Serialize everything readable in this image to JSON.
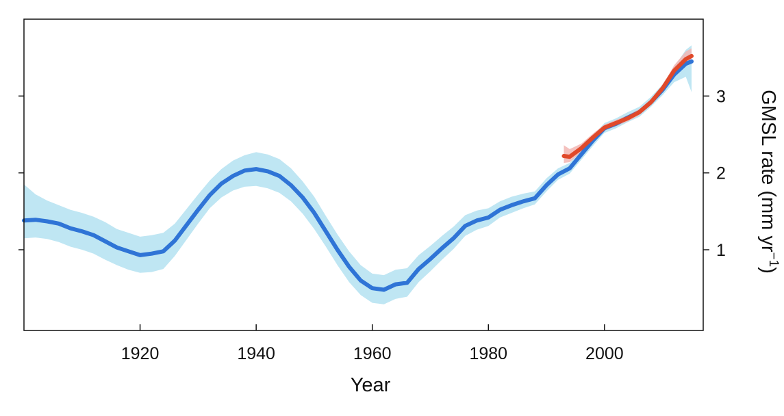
{
  "chart_data": {
    "type": "line",
    "xlabel": "Year",
    "ylabel_main": "GMSL rate (mm yr",
    "ylabel_sup": "−1",
    "ylabel_close": ")",
    "xlim": [
      1900,
      2017
    ],
    "ylim": [
      -0.05,
      4.0
    ],
    "x_ticks": [
      1920,
      1940,
      1960,
      1980,
      2000
    ],
    "x_tick_labels": [
      "1920",
      "1940",
      "1960",
      "1980",
      "2000"
    ],
    "y_ticks": [
      1,
      2,
      3
    ],
    "y_tick_labels": [
      "1",
      "2",
      "3"
    ],
    "y_axis_side": "right",
    "grid": false,
    "legend": "none",
    "series": [
      {
        "color": "#2f74d6",
        "band_color": "#bfe6f3",
        "x": [
          1900,
          1902,
          1904,
          1906,
          1908,
          1910,
          1912,
          1914,
          1916,
          1918,
          1920,
          1922,
          1924,
          1926,
          1928,
          1930,
          1932,
          1934,
          1936,
          1938,
          1940,
          1942,
          1944,
          1946,
          1948,
          1950,
          1952,
          1954,
          1956,
          1958,
          1960,
          1962,
          1964,
          1966,
          1968,
          1970,
          1972,
          1974,
          1976,
          1978,
          1980,
          1982,
          1984,
          1986,
          1988,
          1990,
          1992,
          1994,
          1996,
          1998,
          2000,
          2002,
          2004,
          2006,
          2008,
          2010,
          2012,
          2014,
          2015
        ],
        "y": [
          1.38,
          1.39,
          1.37,
          1.34,
          1.28,
          1.24,
          1.19,
          1.11,
          1.03,
          0.98,
          0.93,
          0.95,
          0.98,
          1.12,
          1.32,
          1.52,
          1.71,
          1.86,
          1.96,
          2.03,
          2.05,
          2.02,
          1.96,
          1.84,
          1.68,
          1.48,
          1.24,
          1.0,
          0.78,
          0.6,
          0.5,
          0.48,
          0.55,
          0.57,
          0.75,
          0.88,
          1.02,
          1.15,
          1.31,
          1.38,
          1.42,
          1.52,
          1.58,
          1.63,
          1.67,
          1.84,
          1.98,
          2.06,
          2.24,
          2.42,
          2.58,
          2.64,
          2.72,
          2.79,
          2.92,
          3.08,
          3.28,
          3.42,
          3.45
        ],
        "lower": [
          1.15,
          1.16,
          1.14,
          1.1,
          1.04,
          1.0,
          0.95,
          0.87,
          0.8,
          0.74,
          0.7,
          0.71,
          0.75,
          0.92,
          1.13,
          1.34,
          1.54,
          1.68,
          1.77,
          1.82,
          1.83,
          1.8,
          1.74,
          1.63,
          1.47,
          1.27,
          1.04,
          0.8,
          0.58,
          0.41,
          0.31,
          0.29,
          0.36,
          0.39,
          0.58,
          0.72,
          0.87,
          1.01,
          1.18,
          1.26,
          1.31,
          1.42,
          1.48,
          1.54,
          1.59,
          1.76,
          1.91,
          1.99,
          2.17,
          2.35,
          2.52,
          2.58,
          2.66,
          2.73,
          2.86,
          3.01,
          3.18,
          3.25,
          3.05
        ],
        "upper": [
          1.85,
          1.72,
          1.64,
          1.58,
          1.52,
          1.48,
          1.43,
          1.36,
          1.27,
          1.22,
          1.17,
          1.19,
          1.22,
          1.34,
          1.53,
          1.72,
          1.9,
          2.05,
          2.16,
          2.23,
          2.27,
          2.24,
          2.18,
          2.06,
          1.89,
          1.69,
          1.44,
          1.2,
          0.98,
          0.8,
          0.69,
          0.67,
          0.74,
          0.76,
          0.93,
          1.05,
          1.18,
          1.3,
          1.45,
          1.51,
          1.54,
          1.63,
          1.69,
          1.73,
          1.76,
          1.93,
          2.06,
          2.13,
          2.31,
          2.49,
          2.65,
          2.71,
          2.79,
          2.86,
          2.99,
          3.15,
          3.38,
          3.6,
          3.66
        ]
      },
      {
        "color": "#e0492a",
        "band_color": "#f2b6b3",
        "x": [
          1993,
          1994,
          1996,
          1998,
          2000,
          2002,
          2004,
          2006,
          2008,
          2010,
          2012,
          2014,
          2015
        ],
        "y": [
          2.22,
          2.21,
          2.32,
          2.46,
          2.59,
          2.65,
          2.71,
          2.79,
          2.92,
          3.1,
          3.33,
          3.48,
          3.52
        ],
        "lower": [
          2.13,
          2.14,
          2.27,
          2.42,
          2.55,
          2.61,
          2.67,
          2.75,
          2.88,
          3.06,
          3.28,
          3.4,
          3.42
        ],
        "upper": [
          2.36,
          2.31,
          2.38,
          2.51,
          2.63,
          2.69,
          2.75,
          2.83,
          2.96,
          3.14,
          3.4,
          3.58,
          3.62
        ]
      }
    ]
  }
}
